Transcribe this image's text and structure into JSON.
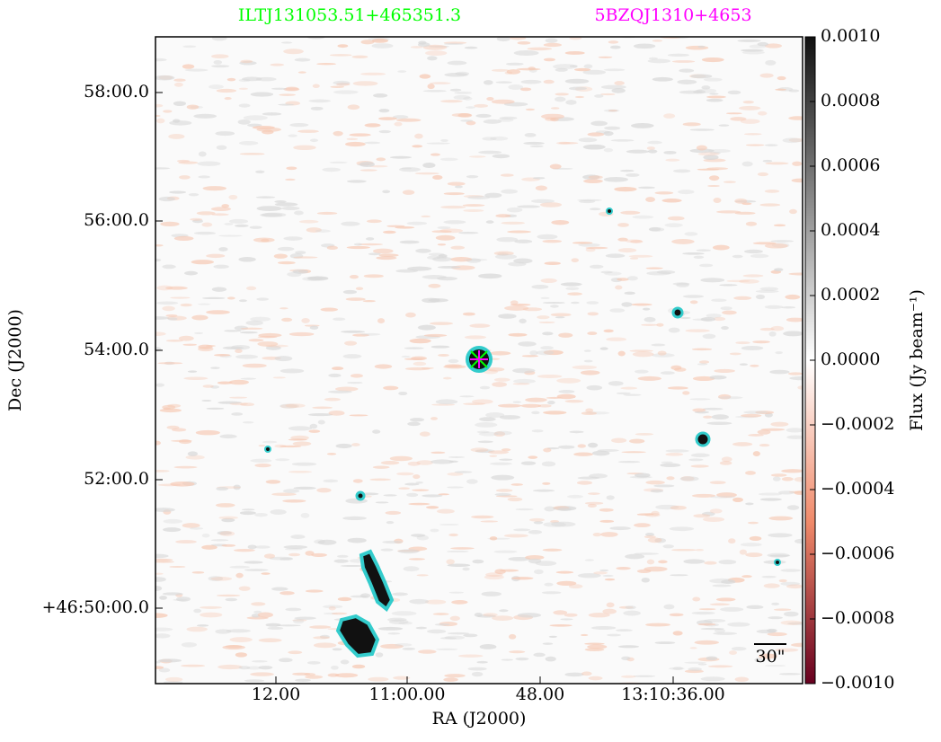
{
  "chart_data": {
    "type": "image",
    "labels": {
      "source": "ILTJ131053.51+465351.3",
      "counterpart": "5BZQJ1310+4653"
    },
    "xlabel": "RA (J2000)",
    "ylabel": "Dec (J2000)",
    "xtick_labels": [
      "12.00",
      "11:00.00",
      "48.00",
      "13:10:36.00"
    ],
    "ytick_labels": [
      "58:00.0",
      "56:00.0",
      "54:00.0",
      "52:00.0",
      "+46:50:00.0"
    ],
    "scale_bar": "30\"",
    "colorbar": {
      "label": "Flux (Jy beam⁻¹)",
      "lim": [
        -0.001,
        0.001
      ],
      "ticks": [
        {
          "value": 0.001,
          "label": "0.0010"
        },
        {
          "value": 0.0008,
          "label": "0.0008"
        },
        {
          "value": 0.0006,
          "label": "0.0006"
        },
        {
          "value": 0.0004,
          "label": "0.0004"
        },
        {
          "value": 0.0002,
          "label": "0.0002"
        },
        {
          "value": 0,
          "label": "0.0000"
        },
        {
          "value": -0.0002,
          "label": "−0.0002"
        },
        {
          "value": -0.0004,
          "label": "−0.0004"
        },
        {
          "value": -0.0006,
          "label": "−0.0006"
        },
        {
          "value": -0.0008,
          "label": "−0.0008"
        },
        {
          "value": -0.001,
          "label": "−0.0010"
        }
      ]
    }
  }
}
